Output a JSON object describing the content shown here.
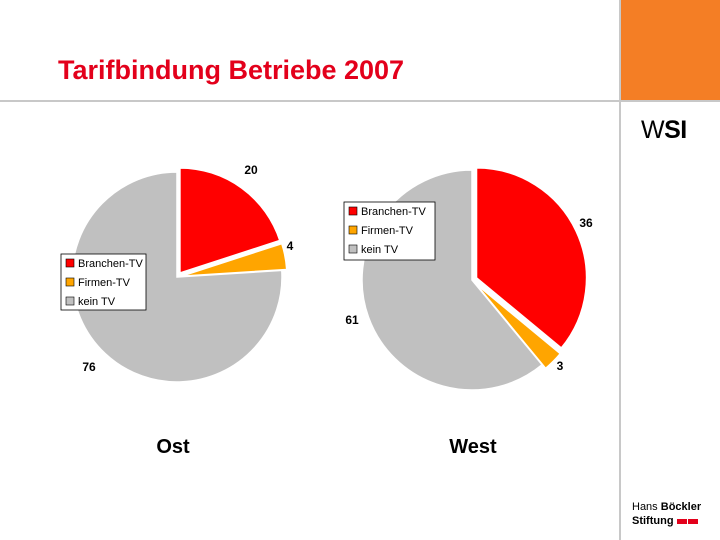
{
  "slide": {
    "title": "Tarifbindung Betriebe 2007"
  },
  "logos": {
    "wsi_part1": "W",
    "wsi_part2": "SI",
    "hans": "Hans",
    "boeckler": "Böckler",
    "stiftung": "Stiftung"
  },
  "colors": {
    "title": "#e3001b",
    "orange_block": "#f47e25",
    "divider": "#c8c8c8",
    "branchen": "#ff0000",
    "firmen": "#ffa500",
    "kein": "#c0c0c0"
  },
  "chart_data": [
    {
      "type": "pie",
      "title": "Ost",
      "legend": "left-center",
      "categories": [
        "Branchen-TV",
        "Firmen-TV",
        "kein TV"
      ],
      "values": [
        20,
        4,
        76
      ],
      "colors": [
        "#ff0000",
        "#ffa500",
        "#c0c0c0"
      ],
      "exploded": [
        true,
        true,
        false
      ]
    },
    {
      "type": "pie",
      "title": "West",
      "legend": "top-left",
      "categories": [
        "Branchen-TV",
        "Firmen-TV",
        "kein TV"
      ],
      "values": [
        36,
        3,
        61
      ],
      "colors": [
        "#ff0000",
        "#ffa500",
        "#c0c0c0"
      ],
      "exploded": [
        true,
        true,
        false
      ]
    }
  ]
}
